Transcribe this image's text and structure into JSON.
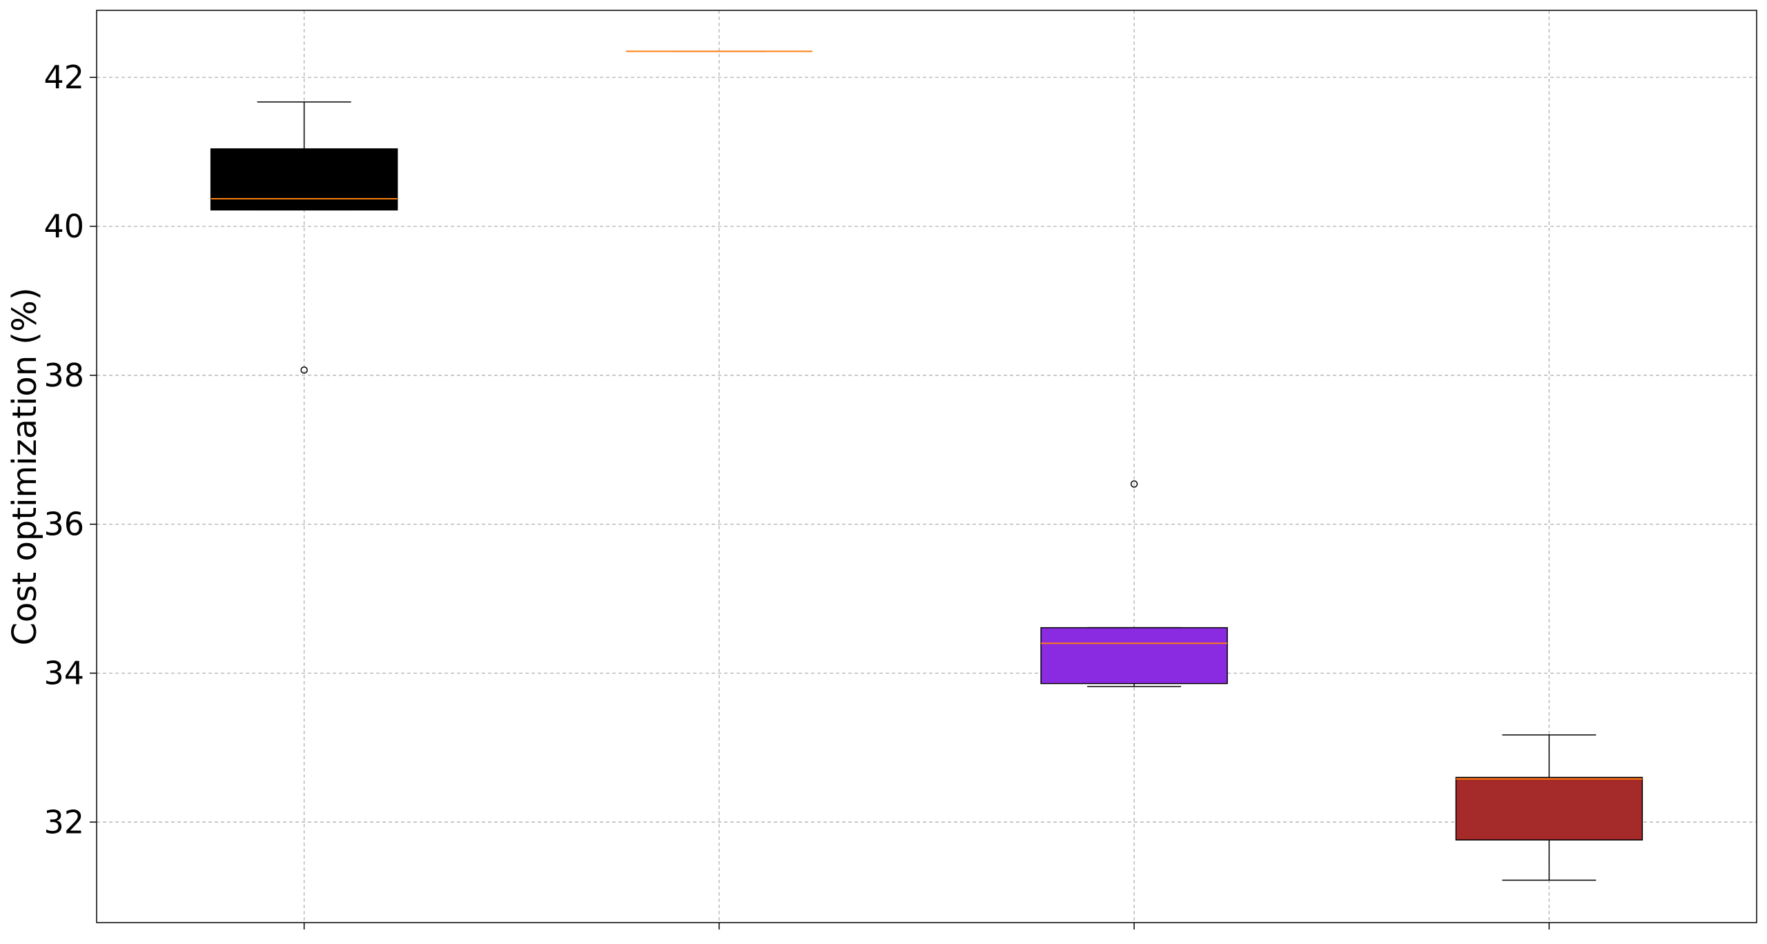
{
  "chart_data": {
    "type": "box",
    "title": "",
    "xlabel": "",
    "ylabel": "Cost optimization (%)",
    "ylim": [
      30.65,
      42.9
    ],
    "yticks": [
      32,
      34,
      36,
      38,
      40,
      42
    ],
    "ytick_labels": [
      "32",
      "34",
      "36",
      "38",
      "40",
      "42"
    ],
    "grid": true,
    "categories": [
      "",
      "",
      "",
      ""
    ],
    "boxes": [
      {
        "color": "#000000",
        "whisker_low": 40.22,
        "q1": 40.22,
        "median": 40.37,
        "q3": 41.04,
        "whisker_high": 41.67,
        "outliers": [
          38.07
        ]
      },
      {
        "color": "#ff7f0e",
        "whisker_low": 42.35,
        "q1": 42.35,
        "median": 42.35,
        "q3": 42.35,
        "whisker_high": 42.35,
        "outliers": []
      },
      {
        "color": "#8a2be2",
        "whisker_low": 33.82,
        "q1": 33.86,
        "median": 34.4,
        "q3": 34.61,
        "whisker_high": 34.61,
        "outliers": [
          36.54
        ]
      },
      {
        "color": "#a52a2a",
        "whisker_low": 31.22,
        "q1": 31.76,
        "median": 32.58,
        "q3": 32.6,
        "whisker_high": 33.17,
        "outliers": []
      }
    ],
    "median_color": "#ff7f0e"
  }
}
